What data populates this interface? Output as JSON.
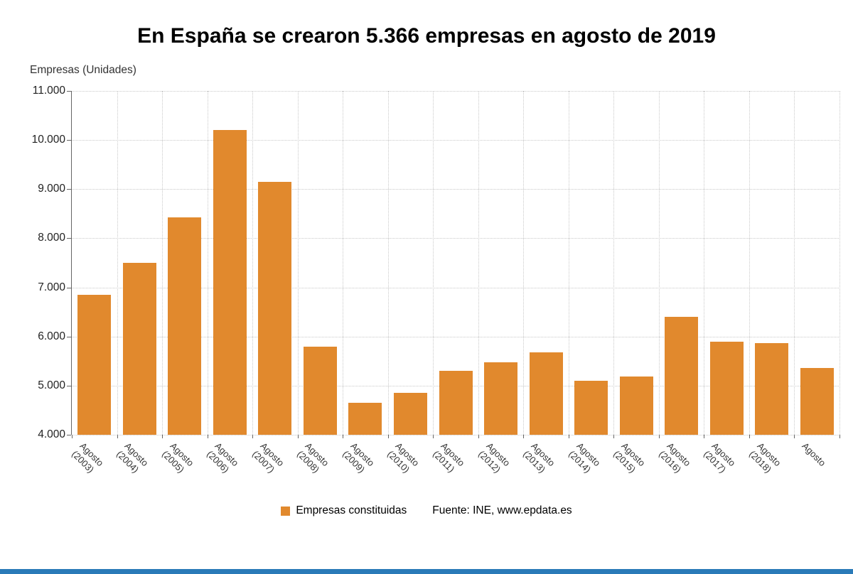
{
  "title": "En España se crearon 5.366 empresas en agosto de 2019",
  "y_axis_title": "Empresas (Unidades)",
  "legend": {
    "label": "Empresas constituidas"
  },
  "source": "Fuente: INE, www.epdata.es",
  "colors": {
    "bar": "#E1892D",
    "grid": "#C9C9C9",
    "axis": "#666666",
    "footer_bar": "#2A7AB8"
  },
  "chart_data": {
    "type": "bar",
    "title": "En España se crearon 5.366 empresas en agosto de 2019",
    "xlabel": "",
    "ylabel": "Empresas (Unidades)",
    "ylim": [
      4000,
      11000
    ],
    "ytick_step": 1000,
    "y_ticks": [
      "4.000",
      "5.000",
      "6.000",
      "7.000",
      "8.000",
      "9.000",
      "10.000",
      "11.000"
    ],
    "grid": "dotted",
    "legend_position": "bottom",
    "categories": [
      "Agosto (2003)",
      "Agosto (2004)",
      "Agosto (2005)",
      "Agosto (2006)",
      "Agosto (2007)",
      "Agosto (2008)",
      "Agosto (2009)",
      "Agosto (2010)",
      "Agosto (2011)",
      "Agosto (2012)",
      "Agosto (2013)",
      "Agosto (2014)",
      "Agosto (2015)",
      "Agosto (2016)",
      "Agosto (2017)",
      "Agosto (2018)",
      "Agosto"
    ],
    "series": [
      {
        "name": "Empresas constituidas",
        "values": [
          6850,
          7500,
          8420,
          10200,
          9150,
          5800,
          4650,
          4850,
          5300,
          5470,
          5680,
          5100,
          5180,
          6400,
          5900,
          5870,
          5366
        ]
      }
    ]
  }
}
